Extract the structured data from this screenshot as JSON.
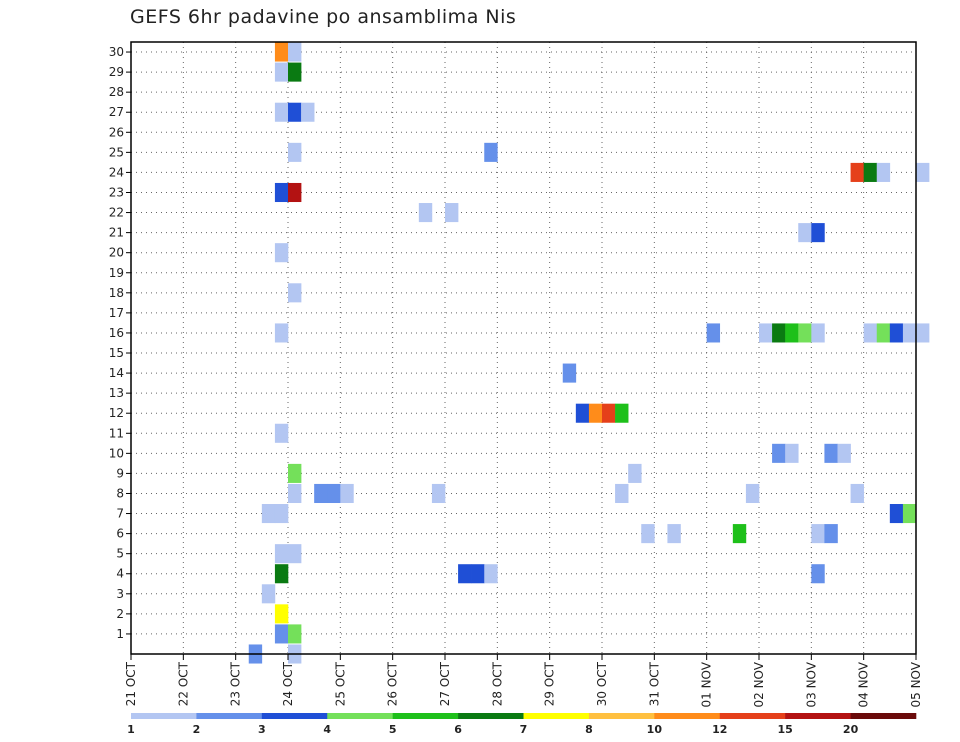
{
  "chart_data": {
    "type": "heatmap",
    "title": "GEFS 6hr padavine po ansamblima Nis",
    "x_ticks": [
      "21 OCT",
      "22 OCT",
      "23 OCT",
      "24 OCT",
      "25 OCT",
      "26 OCT",
      "27 OCT",
      "28 OCT",
      "29 OCT",
      "30 OCT",
      "31 OCT",
      "01 NOV",
      "02 NOV",
      "03 NOV",
      "04 NOV",
      "05 NOV"
    ],
    "y_ticks": [
      "1",
      "2",
      "3",
      "4",
      "5",
      "6",
      "7",
      "8",
      "9",
      "10",
      "11",
      "12",
      "13",
      "14",
      "15",
      "16",
      "17",
      "18",
      "19",
      "20",
      "21",
      "22",
      "23",
      "24",
      "25",
      "26",
      "27",
      "28",
      "29",
      "30"
    ],
    "step_hours": 6,
    "colorbar": {
      "labels": [
        "1",
        "2",
        "3",
        "4",
        "5",
        "6",
        "7",
        "8",
        "10",
        "12",
        "15",
        "20"
      ],
      "colors": [
        "#b3c6f2",
        "#6590ea",
        "#1f4fd6",
        "#74e05a",
        "#1ec01a",
        "#0a7a12",
        "#ffff00",
        "#ffc040",
        "#ff8c1a",
        "#e5401a",
        "#b31212",
        "#6a0a0a"
      ]
    },
    "cells": [
      {
        "m": 1,
        "t": 11,
        "c": 1
      },
      {
        "m": 1,
        "t": 12,
        "c": 3
      },
      {
        "m": 2,
        "t": 11,
        "c": 6
      },
      {
        "m": 3,
        "t": 10,
        "c": 0
      },
      {
        "m": 4,
        "t": 11,
        "c": 5
      },
      {
        "m": 4,
        "t": 25,
        "c": 2
      },
      {
        "m": 4,
        "t": 26,
        "c": 2
      },
      {
        "m": 4,
        "t": 27,
        "c": 0
      },
      {
        "m": 4,
        "t": 52,
        "c": 1
      },
      {
        "m": 5,
        "t": 11,
        "c": 0
      },
      {
        "m": 5,
        "t": 12,
        "c": 0
      },
      {
        "m": 6,
        "t": 39,
        "c": 0
      },
      {
        "m": 6,
        "t": 41,
        "c": 0
      },
      {
        "m": 6,
        "t": 46,
        "c": 4
      },
      {
        "m": 6,
        "t": 52,
        "c": 0
      },
      {
        "m": 6,
        "t": 53,
        "c": 1
      },
      {
        "m": 7,
        "t": 10,
        "c": 0
      },
      {
        "m": 7,
        "t": 11,
        "c": 0
      },
      {
        "m": 7,
        "t": 58,
        "c": 2
      },
      {
        "m": 7,
        "t": 59,
        "c": 3
      },
      {
        "m": 8,
        "t": 12,
        "c": 0
      },
      {
        "m": 8,
        "t": 14,
        "c": 1
      },
      {
        "m": 8,
        "t": 15,
        "c": 1
      },
      {
        "m": 8,
        "t": 16,
        "c": 0
      },
      {
        "m": 8,
        "t": 23,
        "c": 0
      },
      {
        "m": 8,
        "t": 37,
        "c": 0
      },
      {
        "m": 8,
        "t": 47,
        "c": 0
      },
      {
        "m": 8,
        "t": 55,
        "c": 0
      },
      {
        "m": 9,
        "t": 12,
        "c": 3
      },
      {
        "m": 9,
        "t": 38,
        "c": 0
      },
      {
        "m": 10,
        "t": 49,
        "c": 1
      },
      {
        "m": 10,
        "t": 50,
        "c": 0
      },
      {
        "m": 10,
        "t": 53,
        "c": 1
      },
      {
        "m": 10,
        "t": 54,
        "c": 0
      },
      {
        "m": 11,
        "t": 11,
        "c": 0
      },
      {
        "m": 12,
        "t": 34,
        "c": 2
      },
      {
        "m": 12,
        "t": 35,
        "c": 8
      },
      {
        "m": 12,
        "t": 36,
        "c": 9
      },
      {
        "m": 12,
        "t": 37,
        "c": 4
      },
      {
        "m": 14,
        "t": 33,
        "c": 1
      },
      {
        "m": 16,
        "t": 11,
        "c": 0
      },
      {
        "m": 16,
        "t": 44,
        "c": 1
      },
      {
        "m": 16,
        "t": 48,
        "c": 0
      },
      {
        "m": 16,
        "t": 49,
        "c": 5
      },
      {
        "m": 16,
        "t": 50,
        "c": 4
      },
      {
        "m": 16,
        "t": 51,
        "c": 3
      },
      {
        "m": 16,
        "t": 52,
        "c": 0
      },
      {
        "m": 16,
        "t": 56,
        "c": 0
      },
      {
        "m": 16,
        "t": 57,
        "c": 3
      },
      {
        "m": 16,
        "t": 58,
        "c": 2
      },
      {
        "m": 16,
        "t": 59,
        "c": 0
      },
      {
        "m": 16,
        "t": 60,
        "c": 0
      },
      {
        "m": 18,
        "t": 12,
        "c": 0
      },
      {
        "m": 20,
        "t": 11,
        "c": 0
      },
      {
        "m": 21,
        "t": 51,
        "c": 0
      },
      {
        "m": 21,
        "t": 52,
        "c": 2
      },
      {
        "m": 22,
        "t": 22,
        "c": 0
      },
      {
        "m": 22,
        "t": 24,
        "c": 0
      },
      {
        "m": 23,
        "t": 11,
        "c": 2
      },
      {
        "m": 23,
        "t": 12,
        "c": 10
      },
      {
        "m": 24,
        "t": 55,
        "c": 9
      },
      {
        "m": 24,
        "t": 56,
        "c": 5
      },
      {
        "m": 24,
        "t": 57,
        "c": 0
      },
      {
        "m": 24,
        "t": 60,
        "c": 0
      },
      {
        "m": 25,
        "t": 12,
        "c": 0
      },
      {
        "m": 25,
        "t": 27,
        "c": 1
      },
      {
        "m": 27,
        "t": 11,
        "c": 0
      },
      {
        "m": 27,
        "t": 12,
        "c": 2
      },
      {
        "m": 27,
        "t": 13,
        "c": 0
      },
      {
        "m": 29,
        "t": 11,
        "c": 0
      },
      {
        "m": 29,
        "t": 12,
        "c": 5
      },
      {
        "m": 30,
        "t": 11,
        "c": 8
      },
      {
        "m": 30,
        "t": 12,
        "c": 0
      },
      {
        "m": 0,
        "t": 9,
        "c": 1
      },
      {
        "m": 0,
        "t": 12,
        "c": 0
      }
    ]
  }
}
